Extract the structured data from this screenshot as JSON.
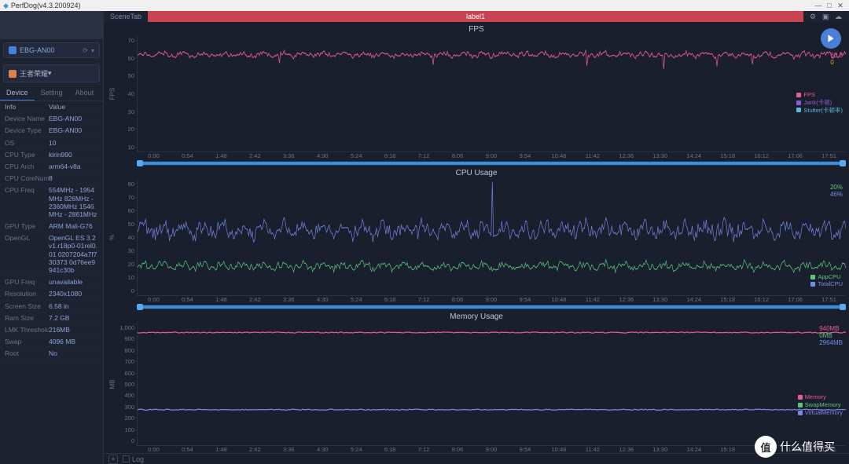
{
  "window": {
    "title": "PerfDog(v4.3.200924)"
  },
  "sidebar": {
    "device_selected": "EBG-AN00",
    "app_selected": "王者荣耀",
    "tabs": [
      "Device",
      "Setting",
      "About"
    ],
    "active_tab": 0,
    "info_header": {
      "k": "Info",
      "v": "Value"
    },
    "info": [
      {
        "k": "Device Name",
        "v": "EBG-AN00"
      },
      {
        "k": "Device Type",
        "v": "EBG-AN00"
      },
      {
        "k": "OS",
        "v": "10"
      },
      {
        "k": "CPU Type",
        "v": "kirin990"
      },
      {
        "k": "CPU Arch",
        "v": "arm64-v8a"
      },
      {
        "k": "CPU CoreNum",
        "v": "8"
      },
      {
        "k": "CPU Freq",
        "v": "554MHz - 1954MHz 826MHz - 2360MHz 1546MHz - 2861MHz"
      },
      {
        "k": "GPU Type",
        "v": "ARM Mali-G76"
      },
      {
        "k": "OpenGL",
        "v": "OpenGL ES 3.2 v1.r18p0-01rel0.01 0207204a7f730373 0d76ee9941c30b"
      },
      {
        "k": "GPU Freq",
        "v": "unavailable"
      },
      {
        "k": "Resolution",
        "v": "2340x1080"
      },
      {
        "k": "Screen Size",
        "v": "6.58 in"
      },
      {
        "k": "Ram Size",
        "v": "7.2 GB"
      },
      {
        "k": "LMK Threshold",
        "v": "216MB"
      },
      {
        "k": "Swap",
        "v": "4096 MB"
      },
      {
        "k": "Root",
        "v": "No"
      }
    ]
  },
  "scene": {
    "tab_label": "SceneTab",
    "label": "label1"
  },
  "time_ticks": [
    "0:00",
    "0:54",
    "1:48",
    "2:42",
    "3:36",
    "4:30",
    "5:24",
    "6:18",
    "7:12",
    "8:06",
    "9:00",
    "9:54",
    "10:48",
    "11:42",
    "12:36",
    "13:30",
    "14:24",
    "15:18",
    "16:12",
    "17:06",
    "17:51"
  ],
  "charts": {
    "fps": {
      "title": "FPS",
      "ylabel": "FPS",
      "yticks": [
        "70",
        "60",
        "50",
        "40",
        "30",
        "20",
        "10"
      ],
      "ylim": [
        10,
        70
      ],
      "current_value": "60.8",
      "current_color": "#e85a9a",
      "sub_value": "0",
      "sub_color": "#f0a030",
      "line_color": "#e85a9a",
      "legend": [
        {
          "label": "FPS",
          "color": "#e85a9a"
        },
        {
          "label": "Jank(卡顿)",
          "color": "#8a5ad8"
        },
        {
          "label": "Stutter(卡顿率)",
          "color": "#5ab8d8"
        }
      ]
    },
    "cpu": {
      "title": "CPU Usage",
      "ylabel": "%",
      "yticks": [
        "80",
        "70",
        "60",
        "50",
        "40",
        "30",
        "20",
        "10",
        "0"
      ],
      "ylim": [
        0,
        80
      ],
      "values": [
        {
          "label": "20%",
          "color": "#5ac878"
        },
        {
          "label": "46%",
          "color": "#7a8ae8"
        }
      ],
      "lines": [
        {
          "color": "#7a8ae8",
          "mean": 45,
          "amp": 8
        },
        {
          "color": "#5ac878",
          "mean": 20,
          "amp": 4
        }
      ],
      "legend": [
        {
          "label": "AppCPU",
          "color": "#5ac878"
        },
        {
          "label": "TotalCPU",
          "color": "#7a8ae8"
        }
      ]
    },
    "mem": {
      "title": "Memory Usage",
      "ylabel": "MB",
      "yticks": [
        "1,000",
        "900",
        "800",
        "700",
        "600",
        "500",
        "400",
        "300",
        "200",
        "100",
        "0"
      ],
      "ylim": [
        0,
        1000
      ],
      "values": [
        {
          "label": "940MB",
          "color": "#e85a9a"
        },
        {
          "label": "0MB",
          "color": "#5ac878"
        },
        {
          "label": "2964MB",
          "color": "#7a8ae8"
        }
      ],
      "lines": [
        {
          "color": "#e85a9a",
          "level": 920
        },
        {
          "color": "#7a8ae8",
          "level": 290
        }
      ],
      "legend": [
        {
          "label": "Memory",
          "color": "#e85a9a"
        },
        {
          "label": "SwapMemory",
          "color": "#5ac878"
        },
        {
          "label": "VirtualMemory",
          "color": "#7a8ae8"
        }
      ]
    }
  },
  "bottom": {
    "log_label": "Log"
  },
  "watermark": {
    "char": "值",
    "text": "什么值得买"
  }
}
